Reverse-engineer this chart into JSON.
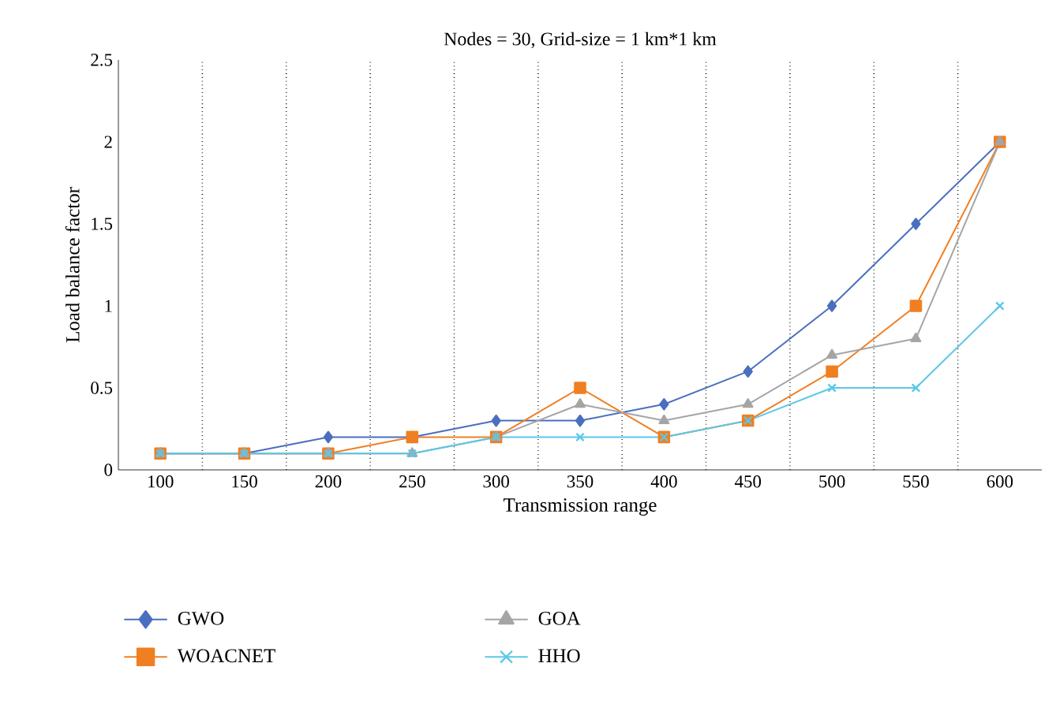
{
  "chart_data": {
    "type": "line",
    "title": "Nodes = 30, Grid-size = 1 km*1 km",
    "xlabel": "Transmission range",
    "ylabel": "Load balance factor",
    "categories": [
      "100",
      "150",
      "200",
      "250",
      "300",
      "350",
      "400",
      "450",
      "500",
      "550",
      "600"
    ],
    "ylim": [
      0,
      2.5
    ],
    "yticks": [
      0,
      0.5,
      1,
      1.5,
      2,
      2.5
    ],
    "grid": "x",
    "legend": "bottom",
    "series": [
      {
        "name": "GWO",
        "color": "#4a6fbf",
        "marker": "diamond",
        "values": [
          0.1,
          0.1,
          0.2,
          0.2,
          0.3,
          0.3,
          0.4,
          0.6,
          1.0,
          1.5,
          2.0
        ]
      },
      {
        "name": "WOACNET",
        "color": "#f07f22",
        "marker": "square",
        "values": [
          0.1,
          0.1,
          0.1,
          0.2,
          0.2,
          0.5,
          0.2,
          0.3,
          0.6,
          1.0,
          2.0
        ]
      },
      {
        "name": "GOA",
        "color": "#a5a5a5",
        "marker": "triangle",
        "values": [
          0.1,
          0.1,
          0.1,
          0.1,
          0.2,
          0.4,
          0.3,
          0.4,
          0.7,
          0.8,
          2.0
        ]
      },
      {
        "name": "HHO",
        "color": "#5bc8e8",
        "marker": "cross",
        "values": [
          0.1,
          0.1,
          0.1,
          0.1,
          0.2,
          0.2,
          0.2,
          0.3,
          0.5,
          0.5,
          1.0
        ]
      }
    ]
  }
}
